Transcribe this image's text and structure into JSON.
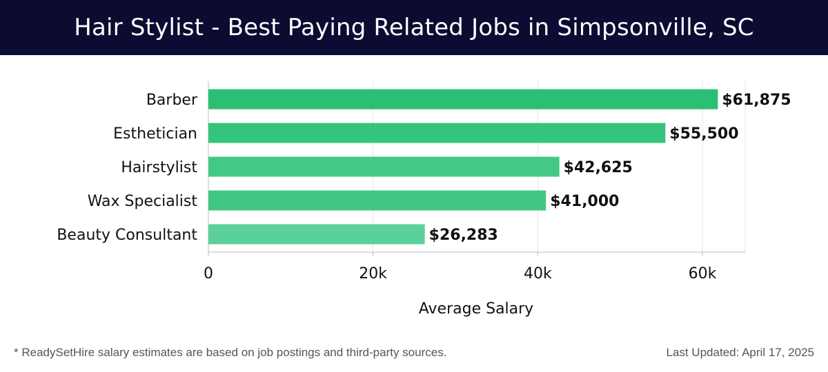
{
  "header": {
    "title": "Hair Stylist - Best Paying Related Jobs in Simpsonville, SC"
  },
  "footer": {
    "note": "* ReadySetHire salary estimates are based on job postings and third-party sources.",
    "updated": "Last Updated: April 17, 2025"
  },
  "chart_data": {
    "type": "bar",
    "orientation": "horizontal",
    "categories": [
      "Barber",
      "Esthetician",
      "Hairstylist",
      "Wax Specialist",
      "Beauty Consultant"
    ],
    "values": [
      61875,
      55500,
      42625,
      41000,
      26283
    ],
    "value_labels": [
      "$61,875",
      "$55,500",
      "$42,625",
      "$41,000",
      "$26,283"
    ],
    "xlabel": "Average Salary",
    "xlim": [
      0,
      65000
    ],
    "xticks": [
      0,
      20000,
      40000,
      60000
    ],
    "xtick_labels": [
      "0",
      "20k",
      "40k",
      "60k"
    ],
    "grid": true,
    "bar_colors": [
      "#2bbf74",
      "#34c47b",
      "#44c886",
      "#41c683",
      "#5bd09a"
    ]
  }
}
